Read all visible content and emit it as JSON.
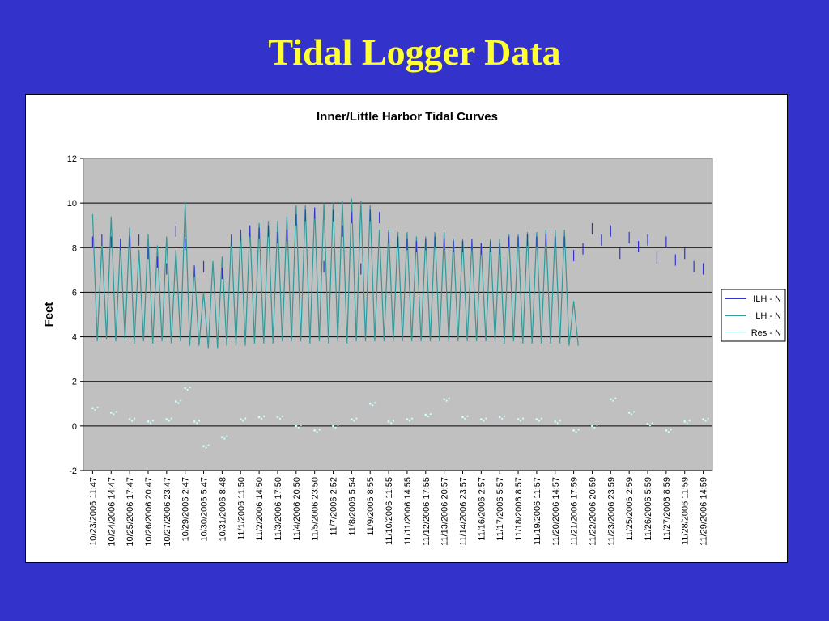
{
  "slide": {
    "title": "Tidal Logger Data",
    "background_color": "#3333cc",
    "title_color": "#ffff33"
  },
  "chart_data": {
    "type": "line",
    "title": "Inner/Little Harbor Tidal Curves",
    "xlabel": "",
    "ylabel": "Feet",
    "ylim": [
      -2,
      12
    ],
    "yticks": [
      -2,
      0,
      2,
      4,
      6,
      8,
      10,
      12
    ],
    "grid": true,
    "plot_background": "#c0c0c0",
    "legend_position": "right",
    "x_tick_labels": [
      "10/23/2006 11:47",
      "10/24/2006 14:47",
      "10/25/2006 17:47",
      "10/26/2006 20:47",
      "10/27/2006 23:47",
      "10/29/2006 2:47",
      "10/30/2006 5:47",
      "10/31/2006 8:48",
      "11/1/2006 11:50",
      "11/2/2006 14:50",
      "11/3/2006 17:50",
      "11/4/2006 20:50",
      "11/5/2006 23:50",
      "11/7/2006 2:52",
      "11/8/2006 5:54",
      "11/9/2006 8:55",
      "11/10/2006 11:55",
      "11/11/2006 14:55",
      "11/12/2006 17:55",
      "11/13/2006 20:57",
      "11/14/2006 23:57",
      "11/16/2006 2:57",
      "11/17/2006 5:57",
      "11/18/2006 8:57",
      "11/19/2006 11:57",
      "11/20/2006 14:57",
      "11/21/2006 17:59",
      "11/22/2006 20:59",
      "11/23/2006 23:59",
      "11/25/2006 2:59",
      "11/26/2006 5:59",
      "11/27/2006 8:59",
      "11/28/2006 11:59",
      "11/29/2006 14:59"
    ],
    "series": [
      {
        "name": "ILH - N",
        "color": "#3333cc",
        "style": "line with gaps",
        "x_tick_index": [
          0,
          0.5,
          1,
          1.5,
          2,
          2.5,
          3,
          3.5,
          4,
          4.5,
          5,
          5.5,
          6,
          6.5,
          7,
          7.5,
          8,
          8.5,
          9,
          9.5,
          10,
          10.5,
          11,
          11.5,
          12,
          12.5,
          13,
          13.5,
          14,
          14.5,
          15,
          15.5,
          16,
          16.5,
          17,
          17.5,
          18,
          18.5,
          19,
          19.5,
          20,
          20.5,
          21,
          21.5,
          22,
          22.5,
          23,
          23.5,
          24,
          24.5,
          25,
          25.5,
          26,
          26.5,
          27,
          27.5,
          28,
          28.5,
          29,
          29.5,
          30,
          30.5,
          31,
          31.5,
          32,
          32.5,
          33
        ],
        "values": [
          8.5,
          8.6,
          8.5,
          8.4,
          8.5,
          8.6,
          8.0,
          7.6,
          7.3,
          9.0,
          8.4,
          7.2,
          7.4,
          null,
          7.1,
          8.6,
          8.8,
          9.0,
          8.9,
          9.0,
          8.7,
          8.8,
          9.5,
          9.7,
          9.8,
          7.4,
          9.7,
          9.0,
          9.6,
          7.3,
          9.7,
          9.6,
          8.7,
          8.5,
          8.4,
          8.3,
          8.4,
          8.5,
          8.4,
          8.3,
          8.3,
          8.4,
          8.2,
          8.3,
          8.2,
          8.5,
          8.5,
          8.6,
          8.5,
          8.6,
          8.5,
          8.5,
          7.9,
          8.2,
          9.1,
          8.6,
          9.0,
          8.0,
          8.7,
          8.3,
          8.6,
          7.8,
          8.5,
          7.7,
          8.0,
          7.4,
          7.3
        ]
      },
      {
        "name": "LH - N",
        "color": "#339999",
        "style": "line",
        "x_tick_index": [
          0,
          0.5,
          1,
          1.5,
          2,
          2.5,
          3,
          3.5,
          4,
          4.5,
          5,
          5.5,
          6,
          6.5,
          7,
          7.5,
          8,
          8.5,
          9,
          9.5,
          10,
          10.5,
          11,
          11.5,
          12,
          12.5,
          13,
          13.5,
          14,
          14.5,
          15,
          15.5,
          16,
          16.5,
          17,
          17.5,
          18,
          18.5,
          19,
          19.5,
          20,
          20.5,
          21,
          21.5,
          22,
          22.5,
          23,
          23.5,
          24,
          24.5,
          25,
          25.5,
          26
        ],
        "high_values": [
          9.5,
          8.2,
          9.4,
          8.2,
          8.9,
          7.9,
          8.6,
          8.1,
          8.5,
          7.9,
          10.0,
          7.1,
          6.0,
          7.4,
          7.6,
          8.5,
          8.8,
          9.0,
          9.1,
          9.2,
          9.2,
          9.4,
          9.9,
          9.9,
          9.8,
          10.0,
          10.0,
          10.1,
          10.2,
          10.1,
          9.9,
          8.8,
          8.8,
          8.7,
          8.7,
          8.5,
          8.5,
          8.7,
          8.7,
          8.4,
          8.4,
          8.3,
          8.2,
          8.4,
          8.4,
          8.6,
          8.6,
          8.7,
          8.7,
          8.8,
          8.8,
          8.8,
          5.6
        ],
        "low_values": [
          3.8,
          3.9,
          3.8,
          3.9,
          3.7,
          3.8,
          3.7,
          3.8,
          3.7,
          3.8,
          3.6,
          3.6,
          3.5,
          3.5,
          3.6,
          3.6,
          3.6,
          3.7,
          3.7,
          3.7,
          3.8,
          3.8,
          3.8,
          3.7,
          3.8,
          3.7,
          3.8,
          3.7,
          3.8,
          3.8,
          3.8,
          3.8,
          3.8,
          3.8,
          3.8,
          3.8,
          3.8,
          3.8,
          3.8,
          3.8,
          3.8,
          3.8,
          3.8,
          3.8,
          3.7,
          3.8,
          3.7,
          3.7,
          3.7,
          3.7,
          3.7,
          3.6,
          3.6
        ]
      },
      {
        "name": "Res - N",
        "color": "#ccffff",
        "style": "scattered points",
        "x_tick_index": [
          0,
          1,
          2,
          3,
          4,
          4.5,
          5,
          5.5,
          6,
          7,
          8,
          9,
          10,
          11,
          12,
          13,
          14,
          15,
          16,
          17,
          18,
          19,
          20,
          21,
          22,
          23,
          24,
          25,
          26,
          27,
          28,
          29,
          30,
          31,
          32,
          33
        ],
        "values": [
          0.8,
          0.6,
          0.3,
          0.2,
          0.3,
          1.1,
          1.7,
          0.2,
          -0.9,
          -0.5,
          0.3,
          0.4,
          0.4,
          0.0,
          -0.2,
          0.0,
          0.3,
          1.0,
          0.2,
          0.3,
          0.5,
          1.2,
          0.4,
          0.3,
          0.4,
          0.3,
          0.3,
          0.2,
          -0.2,
          0.0,
          1.2,
          0.6,
          0.1,
          -0.2,
          0.2,
          0.3
        ]
      }
    ]
  },
  "legend": {
    "items": [
      {
        "label": "ILH - N",
        "color": "#3333cc"
      },
      {
        "label": "LH - N",
        "color": "#339999"
      },
      {
        "label": "Res - N",
        "color": "#ccffff"
      }
    ]
  }
}
